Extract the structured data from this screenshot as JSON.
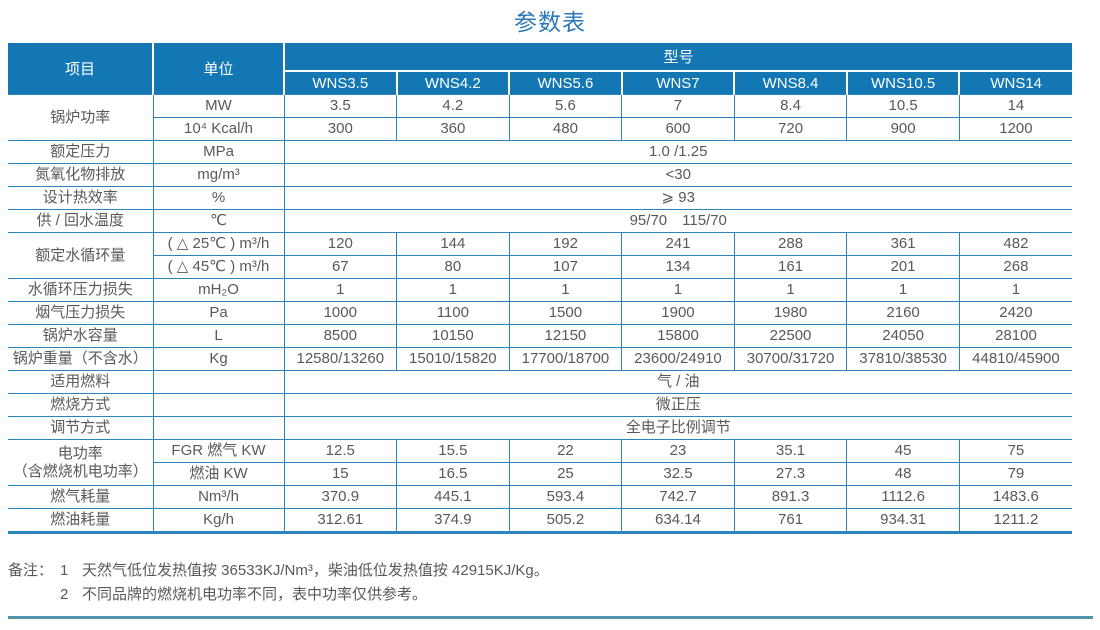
{
  "title": "参数表",
  "colors": {
    "header_bg": "#1377b4",
    "line_blue": "#2a85bf",
    "title_blue": "#2b79b9",
    "text_gray": "#58595b",
    "rule_teal": "#5292aa"
  },
  "table": {
    "header": {
      "item": "项目",
      "unit": "单位",
      "model_group": "型号",
      "models": [
        "WNS3.5",
        "WNS4.2",
        "WNS5.6",
        "WNS7",
        "WNS8.4",
        "WNS10.5",
        "WNS14"
      ]
    },
    "rows": [
      {
        "item": "锅炉功率",
        "item_rowspan": 2,
        "unit": "MW",
        "values": [
          "3.5",
          "4.2",
          "5.6",
          "7",
          "8.4",
          "10.5",
          "14"
        ]
      },
      {
        "unit": "10⁴ Kcal/h",
        "values": [
          "300",
          "360",
          "480",
          "600",
          "720",
          "900",
          "1200"
        ]
      },
      {
        "item": "额定压力",
        "unit": "MPa",
        "span": "1.0 /1.25"
      },
      {
        "item": "氮氧化物排放",
        "unit": "mg/m³",
        "span": "<30"
      },
      {
        "item": "设计热效率",
        "unit": "%",
        "span": "⩾ 93"
      },
      {
        "item": "供 / 回水温度",
        "unit": "℃",
        "span": "95/70　115/70"
      },
      {
        "item": "额定水循环量",
        "item_rowspan": 2,
        "unit": "( △ 25℃ ) m³/h",
        "values": [
          "120",
          "144",
          "192",
          "241",
          "288",
          "361",
          "482"
        ]
      },
      {
        "unit": "( △ 45℃ ) m³/h",
        "values": [
          "67",
          "80",
          "107",
          "134",
          "161",
          "201",
          "268"
        ]
      },
      {
        "item": "水循环压力损失",
        "unit": "mH₂O",
        "values": [
          "1",
          "1",
          "1",
          "1",
          "1",
          "1",
          "1"
        ]
      },
      {
        "item": "烟气压力损失",
        "unit": "Pa",
        "values": [
          "1000",
          "1100",
          "1500",
          "1900",
          "1980",
          "2160",
          "2420"
        ]
      },
      {
        "item": "锅炉水容量",
        "unit": "L",
        "values": [
          "8500",
          "10150",
          "12150",
          "15800",
          "22500",
          "24050",
          "28100"
        ]
      },
      {
        "item": "锅炉重量（不含水）",
        "unit": "Kg",
        "values": [
          "12580/13260",
          "15010/15820",
          "17700/18700",
          "23600/24910",
          "30700/31720",
          "37810/38530",
          "44810/45900"
        ]
      },
      {
        "item": "适用燃料",
        "unit": "",
        "span": "气 / 油"
      },
      {
        "item": "燃烧方式",
        "unit": "",
        "span": "微正压"
      },
      {
        "item": "调节方式",
        "unit": "",
        "span": "全电子比例调节"
      },
      {
        "item": "电功率",
        "item2": "（含燃烧机电功率）",
        "item_rowspan": 2,
        "unit": "FGR 燃气 KW",
        "values": [
          "12.5",
          "15.5",
          "22",
          "23",
          "35.1",
          "45",
          "75"
        ]
      },
      {
        "unit": "燃油 KW",
        "values": [
          "15",
          "16.5",
          "25",
          "32.5",
          "27.3",
          "48",
          "79"
        ]
      },
      {
        "item": "燃气耗量",
        "unit": "Nm³/h",
        "values": [
          "370.9",
          "445.1",
          "593.4",
          "742.7",
          "891.3",
          "1112.6",
          "1483.6"
        ]
      },
      {
        "item": "燃油耗量",
        "unit": "Kg/h",
        "values": [
          "312.61",
          "374.9",
          "505.2",
          "634.14",
          "761",
          "934.31",
          "1211.2"
        ]
      }
    ]
  },
  "notes": {
    "label": "备注：",
    "items": [
      {
        "num": "1",
        "text": "天然气低位发热值按 36533KJ/Nm³，柴油低位发热值按 42915KJ/Kg。"
      },
      {
        "num": "2",
        "text": "不同品牌的燃烧机电功率不同，表中功率仅供参考。"
      }
    ]
  }
}
